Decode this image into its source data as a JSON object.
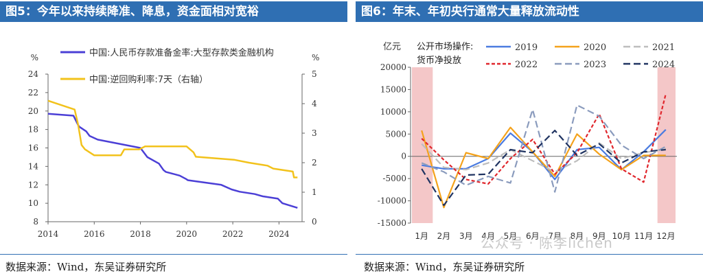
{
  "figures": {
    "left_title": "图5：今年以来持续降准、降息，资金面相对宽裕",
    "right_title": "图6：年末、年初央行通常大量释放流动性",
    "left_source": "数据来源：Wind，东吴证券研究所",
    "right_source": "数据来源：Wind，东吴证券研究所"
  },
  "watermark": "公众号 · 陈李lichen",
  "colors": {
    "title_bg": "#2f6fb3",
    "rrr": "#4b3fd6",
    "repo": "#f2c21b",
    "shade": "#f4c7c8"
  },
  "chart_data": [
    {
      "type": "line",
      "y_left_unit": "%",
      "y_right_unit": "%",
      "ylim_left": [
        8,
        24
      ],
      "ylim_right": [
        0,
        5
      ],
      "yticks_left": [
        "8",
        "10",
        "12",
        "14",
        "16",
        "18",
        "20",
        "22",
        "24"
      ],
      "yticks_right": [
        "0",
        "1",
        "2",
        "3",
        "4",
        "5"
      ],
      "xlim": [
        2014,
        2025
      ],
      "xticks": [
        "2014",
        "2016",
        "2018",
        "2020",
        "2022",
        "2024"
      ],
      "legend_position": "top",
      "series": [
        {
          "name": "中国:人民币存款准备金率:大型存款类金融机构",
          "axis": "left",
          "color": "#4b3fd6",
          "x": [
            2014.0,
            2015.1,
            2015.3,
            2015.35,
            2015.65,
            2015.8,
            2016.15,
            2018.0,
            2018.3,
            2018.8,
            2019.0,
            2019.1,
            2019.7,
            2020.0,
            2020.05,
            2021.5,
            2021.95,
            2022.3,
            2022.95,
            2023.3,
            2023.95,
            2024.15,
            2024.8
          ],
          "y": [
            19.7,
            19.5,
            18.5,
            18.3,
            17.8,
            17.3,
            16.9,
            16.0,
            15.0,
            14.3,
            13.6,
            13.4,
            13.0,
            12.6,
            12.5,
            12.0,
            11.5,
            11.25,
            11.0,
            10.75,
            10.5,
            10.0,
            9.5
          ]
        },
        {
          "name": "中国:逆回购利率:7天（右轴）",
          "axis": "right",
          "color": "#f2c21b",
          "x": [
            2014.0,
            2015.15,
            2015.3,
            2015.45,
            2015.6,
            2015.8,
            2016.0,
            2017.15,
            2017.3,
            2017.95,
            2018.2,
            2020.0,
            2020.3,
            2020.4,
            2022.05,
            2022.7,
            2023.5,
            2023.75,
            2024.6,
            2024.65,
            2024.8
          ],
          "y": [
            4.1,
            3.8,
            3.3,
            2.6,
            2.45,
            2.35,
            2.25,
            2.25,
            2.45,
            2.45,
            2.55,
            2.55,
            2.35,
            2.2,
            2.1,
            2.0,
            1.9,
            1.8,
            1.7,
            1.5,
            1.5
          ]
        }
      ]
    },
    {
      "type": "line",
      "y_unit": "亿元",
      "ylim": [
        -15000,
        20000
      ],
      "yticks": [
        "20000",
        "15000",
        "10000",
        "5000",
        "0",
        "-5000",
        "-10000",
        "-15000"
      ],
      "categories": [
        "1月",
        "2月",
        "3月",
        "4月",
        "5月",
        "6月",
        "7月",
        "8月",
        "9月",
        "10月",
        "11月",
        "12月"
      ],
      "legend_title": "公开市场操作:货币净投放",
      "legend_position": "top",
      "shaded_months": [
        "1月",
        "12月"
      ],
      "series": [
        {
          "name": "2019",
          "color": "#4a7be0",
          "dash": "solid",
          "values": [
            -2000,
            -2800,
            -2800,
            -500,
            5200,
            1000,
            -5200,
            1500,
            2000,
            -3000,
            1000,
            6000
          ]
        },
        {
          "name": "2020",
          "color": "#f4a21b",
          "dash": "solid",
          "values": [
            5800,
            -11500,
            800,
            -500,
            6500,
            1000,
            -4500,
            5000,
            500,
            -3000,
            200,
            200
          ]
        },
        {
          "name": "2021",
          "color": "#bdbdbd",
          "dash": "long",
          "values": [
            2800,
            -2500,
            -3000,
            -1500,
            1500,
            -1000,
            -3500,
            -1000,
            3000,
            -500,
            800,
            1700
          ]
        },
        {
          "name": "2022",
          "color": "#e0262c",
          "dash": "short",
          "values": [
            4000,
            -800,
            -5200,
            -6200,
            -500,
            3800,
            -4000,
            800,
            9500,
            -2800,
            -5800,
            14000
          ]
        },
        {
          "name": "2023",
          "color": "#8a9bbd",
          "dash": "long",
          "values": [
            -1500,
            -3500,
            -6500,
            -4500,
            -6000,
            10500,
            -8000,
            11500,
            9000,
            2500,
            -500,
            2200
          ]
        },
        {
          "name": "2024",
          "color": "#1f3361",
          "dash": "long",
          "values": [
            -2800,
            -11000,
            -4200,
            -4000,
            1500,
            800,
            5800,
            200,
            2800,
            -1500,
            1000,
            1500
          ]
        }
      ]
    }
  ]
}
